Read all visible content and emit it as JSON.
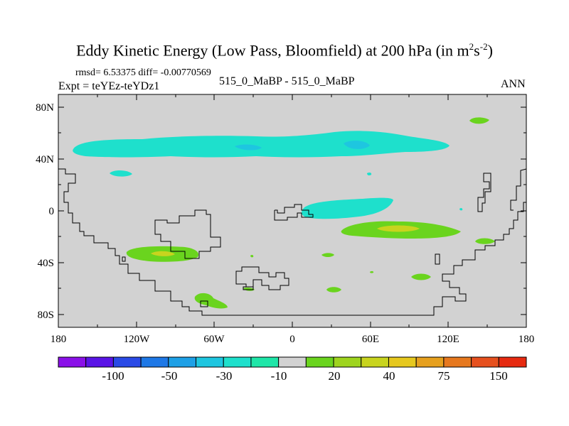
{
  "title": {
    "main": "Eddy Kinetic Energy (Low Pass, Bloomfield) at 200 hPa (in m",
    "sup1": "2",
    "mid": "s",
    "sup2": "-2",
    "end": ")"
  },
  "stats": "rmsd= 6.53375 diff= -0.00770569",
  "expt": "Expt = teYEz-teYDz1",
  "comparison": "515_0_MaBP - 515_0_MaBP",
  "period": "ANN",
  "axes": {
    "x_ticks": [
      "180",
      "120W",
      "60W",
      "0",
      "60E",
      "120E",
      "180"
    ],
    "y_ticks": [
      "80N",
      "40N",
      "0",
      "40S",
      "80S"
    ]
  },
  "colorbar": {
    "colors": [
      "#8a10e8",
      "#5a14e6",
      "#2a4ae6",
      "#1e78e6",
      "#1ea0e6",
      "#1ec6e0",
      "#1ee0cc",
      "#1ee6a8",
      "#d2d2d2",
      "#6ad41e",
      "#9ed41e",
      "#c8d41e",
      "#e6c81e",
      "#e6a01e",
      "#e6781e",
      "#e6501e",
      "#e62a10"
    ],
    "labels": [
      "-100",
      "-50",
      "-30",
      "-10",
      "20",
      "40",
      "75",
      "150"
    ]
  },
  "colors": {
    "background": "#d2d2d2",
    "cyan": "#1ee0cc",
    "cyan_dark": "#1ec6e0",
    "green": "#6ad41e",
    "yellow_green": "#c8d41e",
    "coastline": "#000000"
  }
}
